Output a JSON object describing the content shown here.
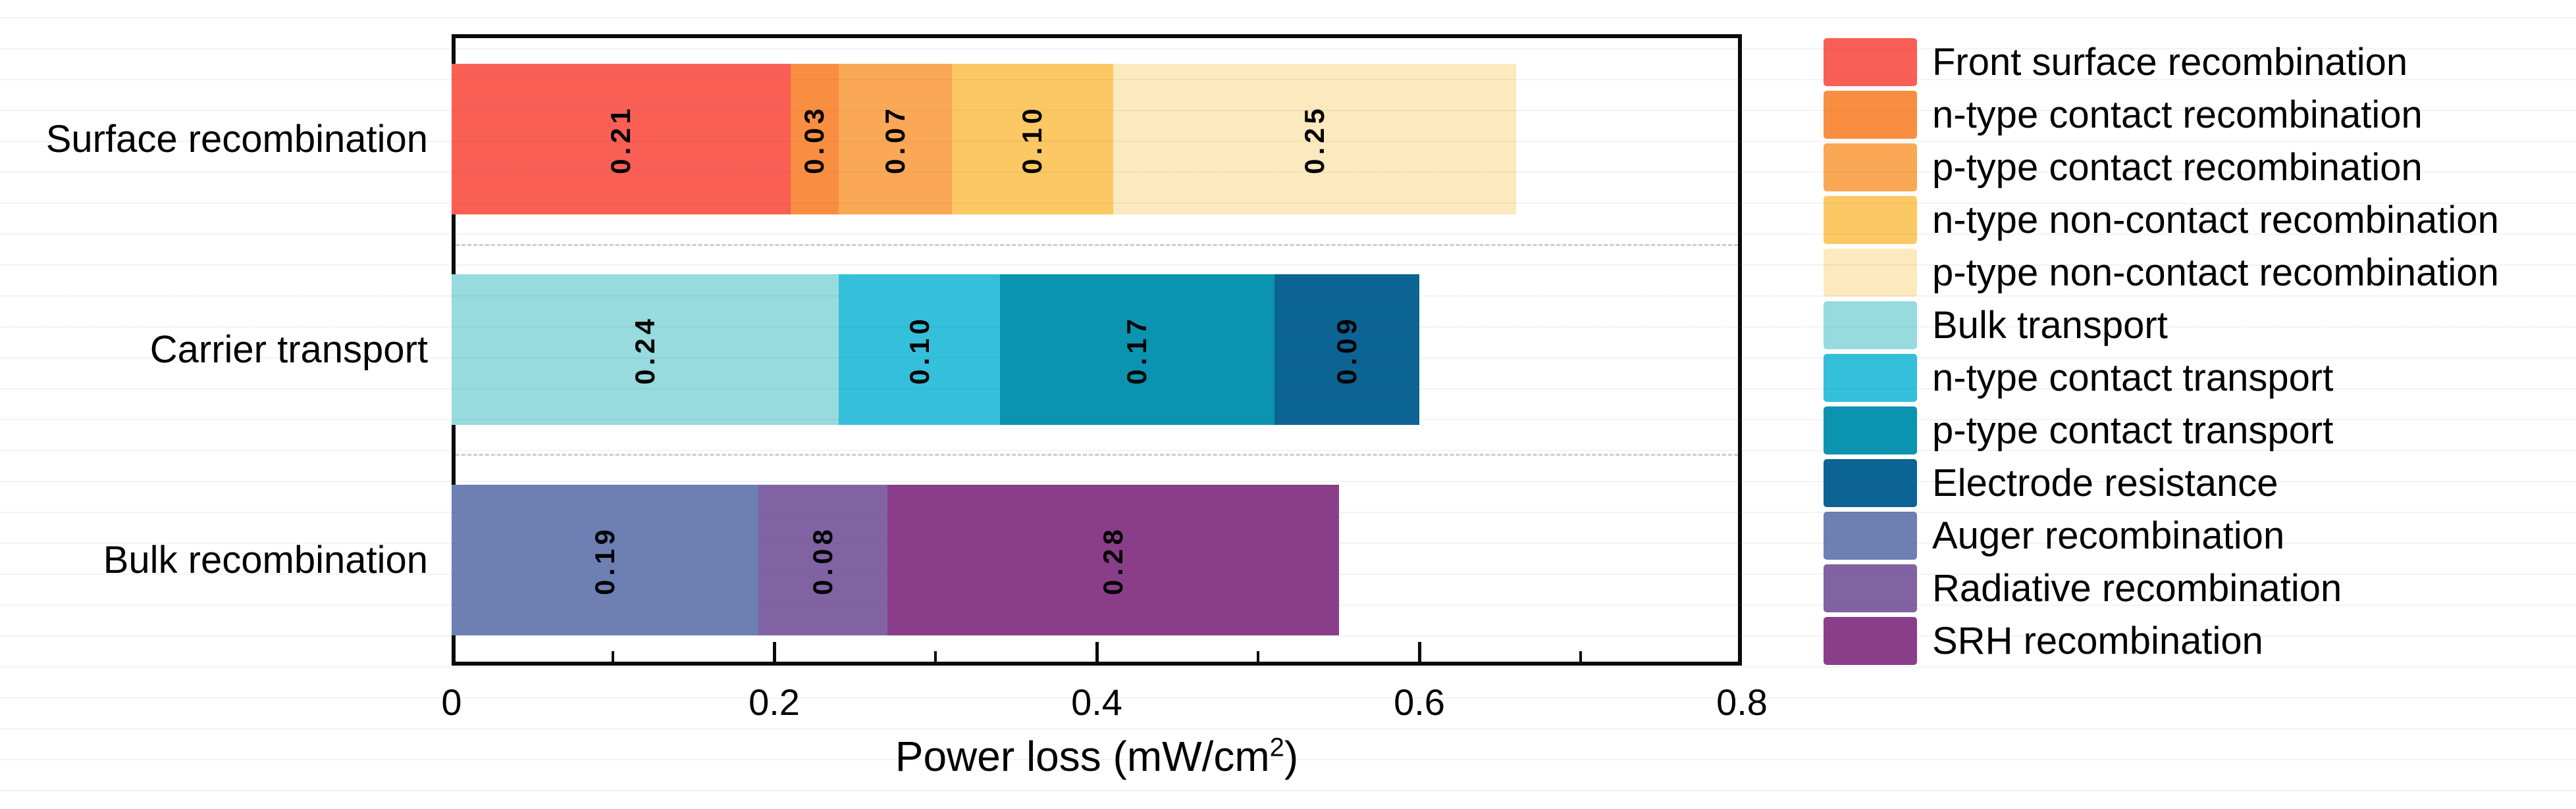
{
  "chart_data": {
    "type": "bar",
    "orientation": "horizontal",
    "stacked": true,
    "title": "",
    "xlabel": "Power loss (mW/cm2)",
    "xlabel_parts": {
      "prefix": "Power loss (mW/cm",
      "superscript": "2",
      "suffix": ")"
    },
    "xlim": [
      0,
      0.8
    ],
    "x_major_ticks": [
      0,
      0.2,
      0.4,
      0.6,
      0.8
    ],
    "x_major_tick_labels": [
      "0",
      "0.2",
      "0.4",
      "0.6",
      "0.8"
    ],
    "x_minor_ticks": [
      0.1,
      0.3,
      0.5,
      0.7
    ],
    "grid": "off",
    "legend_position": "right",
    "group_separator_style": "dashed",
    "categories": [
      "Surface recombination",
      "Carrier transport",
      "Bulk recombination"
    ],
    "series": [
      {
        "name": "Front surface recombination",
        "category": "Surface recombination",
        "value": 0.21,
        "value_label": "0.21",
        "color": "#FA5F55"
      },
      {
        "name": "n-type contact recombination",
        "category": "Surface recombination",
        "value": 0.03,
        "value_label": "0.03",
        "color": "#F98E41"
      },
      {
        "name": "p-type contact recombination",
        "category": "Surface recombination",
        "value": 0.07,
        "value_label": "0.07",
        "color": "#FAA855"
      },
      {
        "name": "n-type non-contact recombination",
        "category": "Surface recombination",
        "value": 0.1,
        "value_label": "0.10",
        "color": "#FCC863"
      },
      {
        "name": "p-type non-contact recombination",
        "category": "Surface recombination",
        "value": 0.25,
        "value_label": "0.25",
        "color": "#FCE9BD"
      },
      {
        "name": "Bulk transport",
        "category": "Carrier transport",
        "value": 0.24,
        "value_label": "0.24",
        "color": "#97DBDE"
      },
      {
        "name": "n-type contact transport",
        "category": "Carrier transport",
        "value": 0.1,
        "value_label": "0.10",
        "color": "#34C0DB"
      },
      {
        "name": "p-type contact transport",
        "category": "Carrier transport",
        "value": 0.17,
        "value_label": "0.17",
        "color": "#0A94B0"
      },
      {
        "name": "Electrode resistance",
        "category": "Carrier transport",
        "value": 0.09,
        "value_label": "0.09",
        "color": "#0C6494"
      },
      {
        "name": "Auger recombination",
        "category": "Bulk recombination",
        "value": 0.19,
        "value_label": "0.19",
        "color": "#6E7FB4"
      },
      {
        "name": "Radiative recombination",
        "category": "Bulk recombination",
        "value": 0.08,
        "value_label": "0.08",
        "color": "#8163A4"
      },
      {
        "name": "SRH recombination",
        "category": "Bulk recombination",
        "value": 0.28,
        "value_label": "0.28",
        "color": "#8A3E89"
      }
    ]
  }
}
